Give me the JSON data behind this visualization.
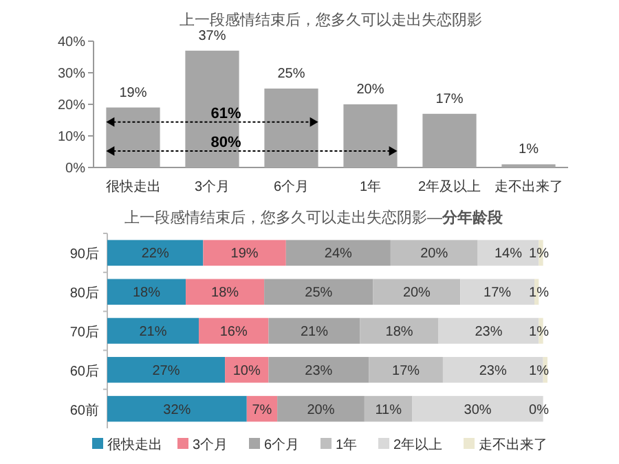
{
  "chart_data": [
    {
      "type": "bar",
      "title": "上一段感情结束后，您多久可以走出失恋阴影",
      "categories": [
        "很快走出",
        "3个月",
        "6个月",
        "1年",
        "2年及以上",
        "走不出来了"
      ],
      "values": [
        19,
        37,
        25,
        20,
        17,
        1
      ],
      "color": "#a6a6a6",
      "ylim": [
        0,
        40
      ],
      "yticks": [
        {
          "value": 0,
          "label": "0%"
        },
        {
          "value": 10,
          "label": "10%"
        },
        {
          "value": 20,
          "label": "20%"
        },
        {
          "value": 30,
          "label": "30%"
        },
        {
          "value": 40,
          "label": "40%"
        }
      ],
      "value_labels": [
        "19%",
        "37%",
        "25%",
        "20%",
        "17%",
        "1%"
      ],
      "annotations": [
        "61%",
        "80%"
      ]
    },
    {
      "type": "bar",
      "title": "上一段感情结束后，您多久可以走出失恋阴影—**分年龄段**",
      "orientation": "horizontal",
      "stacked": true,
      "categories": [
        "90后",
        "80后",
        "70后",
        "60后",
        "60前"
      ],
      "legend": "bottom",
      "tick_labels": "y",
      "series": [
        {
          "name": "很快走出",
          "color": "#2a8fb5",
          "values": [
            22,
            18,
            21,
            27,
            32
          ],
          "value_labels": [
            "22%",
            "18%",
            "21%",
            "27%",
            "32%"
          ]
        },
        {
          "name": "3个月",
          "color": "#f08390",
          "values": [
            19,
            18,
            16,
            10,
            7
          ],
          "value_labels": [
            "19%",
            "18%",
            "16%",
            "10%",
            "7%"
          ]
        },
        {
          "name": "6个月",
          "color": "#a6a6a6",
          "values": [
            24,
            25,
            21,
            23,
            20
          ],
          "value_labels": [
            "24%",
            "25%",
            "21%",
            "23%",
            "20%"
          ]
        },
        {
          "name": "1年",
          "color": "#bfbfbf",
          "values": [
            20,
            20,
            18,
            17,
            11
          ],
          "value_labels": [
            "20%",
            "20%",
            "18%",
            "17%",
            "11%"
          ]
        },
        {
          "name": "2年以上",
          "color": "#d9d9d9",
          "values": [
            14,
            17,
            23,
            23,
            30
          ],
          "value_labels": [
            "14%",
            "17%",
            "23%",
            "23%",
            "30%"
          ]
        },
        {
          "name": "走不出来了",
          "color": "#ece8d0",
          "values": [
            1,
            1,
            1,
            1,
            0
          ],
          "value_labels": [
            "1%",
            "1%",
            "1%",
            "1%",
            "0%"
          ]
        }
      ]
    }
  ]
}
